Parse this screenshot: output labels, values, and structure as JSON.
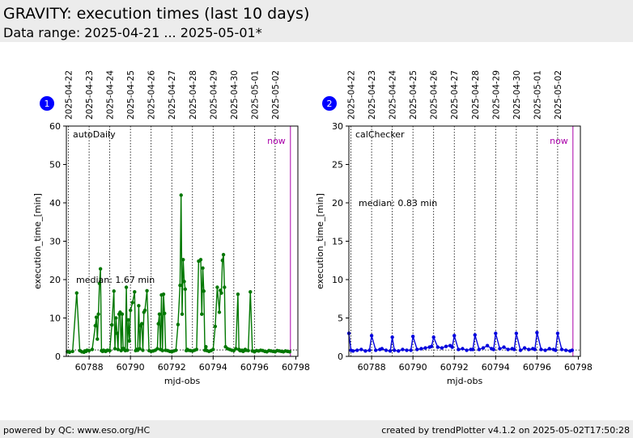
{
  "header": {
    "title": "GRAVITY: execution times (last 10 days)",
    "subtitle": "Data range: 2025-04-21 ... 2025-05-01*"
  },
  "footer": {
    "left": "powered by QC: www.eso.org/HC",
    "right": "created by trendPlotter v4.1.2 on 2025-05-02T17:50:28"
  },
  "colors": {
    "panel1": "#007700",
    "panel2": "#0000dd",
    "now": "#aa00aa",
    "badge": "#0000ff"
  },
  "chart_data": [
    {
      "type": "line",
      "badge": "1",
      "series": [
        {
          "name": "autoDaily",
          "x": [
            60786.95,
            60787.05,
            60787.2,
            60787.4,
            60787.55,
            60787.65,
            60787.75,
            60787.8,
            60787.85,
            60787.9,
            60788.0,
            60788.15,
            60788.3,
            60788.35,
            60788.4,
            60788.45,
            60788.5,
            60788.55,
            60788.6,
            60788.65,
            60788.7,
            60788.75,
            60788.8,
            60788.85,
            60788.9,
            60789.0,
            60789.1,
            60789.2,
            60789.25,
            60789.3,
            60789.35,
            60789.4,
            60789.45,
            60789.5,
            60789.55,
            60789.6,
            60789.65,
            60789.7,
            60789.75,
            60789.8,
            60789.85,
            60789.9,
            60789.95,
            60790.0,
            60790.1,
            60790.2,
            60790.25,
            60790.3,
            60790.35,
            60790.4,
            60790.45,
            60790.5,
            60790.55,
            60790.6,
            60790.65,
            60790.7,
            60790.8,
            60790.9,
            60791.0,
            60791.1,
            60791.2,
            60791.3,
            60791.35,
            60791.4,
            60791.45,
            60791.5,
            60791.55,
            60791.6,
            60791.65,
            60791.7,
            60791.8,
            60791.9,
            60792.0,
            60792.1,
            60792.2,
            60792.3,
            60792.4,
            60792.45,
            60792.5,
            60792.55,
            60792.6,
            60792.65,
            60792.7,
            60792.75,
            60792.8,
            60792.9,
            60793.0,
            60793.1,
            60793.2,
            60793.3,
            60793.4,
            60793.45,
            60793.5,
            60793.55,
            60793.6,
            60793.65,
            60793.7,
            60793.8,
            60793.9,
            60794.0,
            60794.1,
            60794.2,
            60794.3,
            60794.35,
            60794.4,
            60794.45,
            60794.5,
            60794.55,
            60794.6,
            60794.7,
            60794.8,
            60794.9,
            60795.0,
            60795.1,
            60795.2,
            60795.25,
            60795.3,
            60795.35,
            60795.4,
            60795.45,
            60795.5,
            60795.55,
            60795.6,
            60795.7,
            60795.8,
            60795.9,
            60796.0,
            60796.1,
            60796.2,
            60796.3,
            60796.4,
            60796.5,
            60796.6,
            60796.7,
            60796.8,
            60796.9,
            60797.0,
            60797.1,
            60797.2,
            60797.3,
            60797.4,
            60797.5,
            60797.6,
            60797.7
          ],
          "y": [
            1.2,
            1.1,
            1.3,
            16.5,
            1.5,
            1.2,
            1.1,
            1.4,
            1.3,
            1.6,
            1.5,
            1.8,
            8.0,
            10.2,
            4.5,
            11.0,
            19.0,
            22.8,
            1.5,
            1.3,
            1.6,
            1.4,
            1.3,
            1.5,
            1.6,
            1.5,
            8.2,
            17.0,
            2.0,
            10.0,
            6.0,
            1.8,
            11.0,
            11.5,
            1.5,
            11.0,
            2.1,
            1.8,
            1.5,
            18.0,
            1.6,
            9.5,
            4.0,
            12.0,
            14.0,
            16.8,
            1.5,
            1.8,
            1.6,
            13.2,
            2.0,
            8.0,
            8.5,
            1.6,
            11.5,
            12.0,
            17.1,
            1.5,
            1.3,
            1.4,
            1.6,
            2.0,
            8.5,
            11.0,
            1.8,
            16.0,
            1.5,
            16.2,
            11.2,
            1.6,
            1.5,
            1.3,
            1.2,
            1.4,
            1.6,
            8.3,
            18.5,
            42.0,
            11.0,
            25.2,
            19.5,
            17.5,
            1.5,
            1.8,
            1.6,
            1.5,
            1.4,
            1.6,
            1.8,
            24.8,
            25.2,
            11.0,
            23.0,
            17.0,
            1.6,
            2.5,
            1.5,
            1.3,
            1.5,
            1.8,
            7.8,
            18.0,
            11.5,
            17.2,
            16.5,
            25.0,
            26.5,
            18.0,
            2.5,
            2.0,
            1.8,
            1.6,
            1.5,
            2.0,
            16.2,
            1.8,
            1.5,
            1.5,
            1.6,
            1.3,
            1.5,
            1.8,
            1.6,
            1.5,
            16.8,
            1.4,
            1.2,
            1.5,
            1.4,
            1.6,
            1.5,
            1.3,
            1.2,
            1.5,
            1.4,
            1.3,
            1.2,
            1.5,
            1.4,
            1.3,
            1.2,
            1.4,
            1.3,
            1.2
          ]
        }
      ],
      "title": "autoDaily",
      "xlabel": "mjd-obs",
      "ylabel": "execution_time_[min]",
      "xlim": [
        60786.9,
        60798.1
      ],
      "ylim": [
        0,
        60
      ],
      "xticks": [
        60788,
        60790,
        60792,
        60794,
        60796,
        60798
      ],
      "yticks": [
        0,
        10,
        20,
        30,
        40,
        50,
        60
      ],
      "median_label": "median: 1.67 min",
      "median_value": 1.67,
      "now_label": "now",
      "now_x": 60797.74,
      "date_lines": [
        {
          "x": 60787.0,
          "label": "2025-04-22"
        },
        {
          "x": 60788.0,
          "label": "2025-04-23"
        },
        {
          "x": 60789.0,
          "label": "2025-04-24"
        },
        {
          "x": 60790.0,
          "label": "2025-04-25"
        },
        {
          "x": 60791.0,
          "label": "2025-04-26"
        },
        {
          "x": 60792.0,
          "label": "2025-04-27"
        },
        {
          "x": 60793.0,
          "label": "2025-04-28"
        },
        {
          "x": 60794.0,
          "label": "2025-04-29"
        },
        {
          "x": 60795.0,
          "label": "2025-04-30"
        },
        {
          "x": 60796.0,
          "label": "2025-05-01"
        },
        {
          "x": 60797.0,
          "label": "2025-05-02"
        }
      ],
      "grid": false
    },
    {
      "type": "line",
      "badge": "2",
      "series": [
        {
          "name": "calChecker",
          "x": [
            60786.9,
            60787.0,
            60787.1,
            60787.3,
            60787.5,
            60787.7,
            60787.9,
            60788.0,
            60788.2,
            60788.4,
            60788.5,
            60788.7,
            60788.9,
            60789.0,
            60789.1,
            60789.3,
            60789.5,
            60789.7,
            60789.9,
            60790.0,
            60790.2,
            60790.4,
            60790.6,
            60790.8,
            60790.9,
            60791.0,
            60791.2,
            60791.4,
            60791.6,
            60791.8,
            60791.9,
            60792.0,
            60792.2,
            60792.4,
            60792.6,
            60792.8,
            60792.9,
            60793.0,
            60793.2,
            60793.4,
            60793.6,
            60793.8,
            60793.9,
            60794.0,
            60794.2,
            60794.4,
            60794.6,
            60794.8,
            60794.9,
            60795.0,
            60795.2,
            60795.4,
            60795.6,
            60795.8,
            60795.9,
            60796.0,
            60796.2,
            60796.4,
            60796.6,
            60796.8,
            60796.9,
            60797.0,
            60797.2,
            60797.4,
            60797.6,
            60797.7
          ],
          "y": [
            3.0,
            0.8,
            0.7,
            0.8,
            0.9,
            0.7,
            0.8,
            2.7,
            0.8,
            0.9,
            1.0,
            0.8,
            0.7,
            2.5,
            0.8,
            0.7,
            0.9,
            0.8,
            0.8,
            2.6,
            0.9,
            1.0,
            1.1,
            1.2,
            1.3,
            2.5,
            1.2,
            1.1,
            1.3,
            1.4,
            1.2,
            2.7,
            0.9,
            1.0,
            0.8,
            0.9,
            0.9,
            2.8,
            0.9,
            1.1,
            1.4,
            1.0,
            0.9,
            3.0,
            1.0,
            1.2,
            0.9,
            1.0,
            0.9,
            3.0,
            0.8,
            1.1,
            0.9,
            1.0,
            0.9,
            3.1,
            0.9,
            0.8,
            1.0,
            0.9,
            0.8,
            3.0,
            0.9,
            0.8,
            0.7,
            0.8
          ]
        }
      ],
      "title": "calChecker",
      "xlabel": "mjd-obs",
      "ylabel": "execution_time_[min]",
      "xlim": [
        60786.9,
        60798.1
      ],
      "ylim": [
        0,
        30
      ],
      "xticks": [
        60788,
        60790,
        60792,
        60794,
        60796,
        60798
      ],
      "yticks": [
        0,
        5,
        10,
        15,
        20,
        25,
        30
      ],
      "median_label": "median: 0.83 min",
      "median_value": 0.83,
      "now_label": "now",
      "now_x": 60797.74,
      "date_lines": [
        {
          "x": 60787.0,
          "label": "2025-04-22"
        },
        {
          "x": 60788.0,
          "label": "2025-04-23"
        },
        {
          "x": 60789.0,
          "label": "2025-04-24"
        },
        {
          "x": 60790.0,
          "label": "2025-04-25"
        },
        {
          "x": 60791.0,
          "label": "2025-04-26"
        },
        {
          "x": 60792.0,
          "label": "2025-04-27"
        },
        {
          "x": 60793.0,
          "label": "2025-04-28"
        },
        {
          "x": 60794.0,
          "label": "2025-04-29"
        },
        {
          "x": 60795.0,
          "label": "2025-04-30"
        },
        {
          "x": 60796.0,
          "label": "2025-05-01"
        },
        {
          "x": 60797.0,
          "label": "2025-05-02"
        }
      ],
      "grid": false
    }
  ]
}
